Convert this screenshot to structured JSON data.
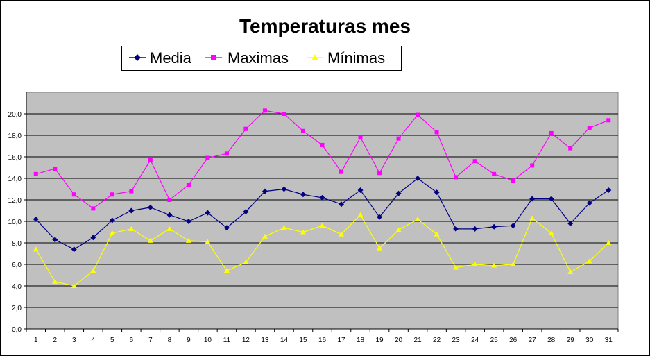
{
  "chart_data": {
    "type": "line",
    "title": "Temperaturas mes",
    "xlabel": "",
    "ylabel": "",
    "ylim": [
      0,
      22
    ],
    "yticks": [
      "0,0",
      "2,0",
      "4,0",
      "6,0",
      "8,0",
      "10,0",
      "12,0",
      "14,0",
      "16,0",
      "18,0",
      "20,0"
    ],
    "ytick_values": [
      0,
      2,
      4,
      6,
      8,
      10,
      12,
      14,
      16,
      18,
      20
    ],
    "categories": [
      "1",
      "2",
      "3",
      "4",
      "5",
      "6",
      "7",
      "8",
      "9",
      "10",
      "11",
      "12",
      "13",
      "14",
      "15",
      "16",
      "17",
      "18",
      "19",
      "20",
      "21",
      "22",
      "23",
      "24",
      "25",
      "26",
      "27",
      "28",
      "29",
      "30",
      "31"
    ],
    "grid": true,
    "legend_position": "top",
    "plot_background": "#c0c0c0",
    "series": [
      {
        "name": "Media",
        "color": "#000080",
        "marker": "diamond",
        "values": [
          10.2,
          8.3,
          7.4,
          8.5,
          10.1,
          11.0,
          11.3,
          10.6,
          10.0,
          10.8,
          9.4,
          10.9,
          12.8,
          13.0,
          12.5,
          12.2,
          11.6,
          12.9,
          10.4,
          12.6,
          14.0,
          12.7,
          9.3,
          9.3,
          9.5,
          9.6,
          12.1,
          12.1,
          9.8,
          11.7,
          12.9
        ]
      },
      {
        "name": "Maximas",
        "color": "#ff00ff",
        "marker": "square",
        "values": [
          14.4,
          14.9,
          12.5,
          11.2,
          12.5,
          12.8,
          15.7,
          12.0,
          13.4,
          15.9,
          16.3,
          18.6,
          20.3,
          20.0,
          18.4,
          17.1,
          14.6,
          17.8,
          14.5,
          17.7,
          19.9,
          18.3,
          14.1,
          15.6,
          14.4,
          13.8,
          15.2,
          18.2,
          16.8,
          18.7,
          19.4
        ]
      },
      {
        "name": "Mínimas",
        "color": "#ffff00",
        "marker": "triangle",
        "values": [
          7.4,
          4.4,
          4.0,
          5.4,
          8.9,
          9.3,
          8.2,
          9.3,
          8.2,
          8.1,
          5.4,
          6.2,
          8.6,
          9.4,
          9.0,
          9.6,
          8.8,
          10.6,
          7.5,
          9.2,
          10.2,
          8.8,
          5.7,
          6.0,
          5.9,
          6.0,
          10.3,
          8.9,
          5.3,
          6.3,
          8.0
        ]
      }
    ]
  }
}
